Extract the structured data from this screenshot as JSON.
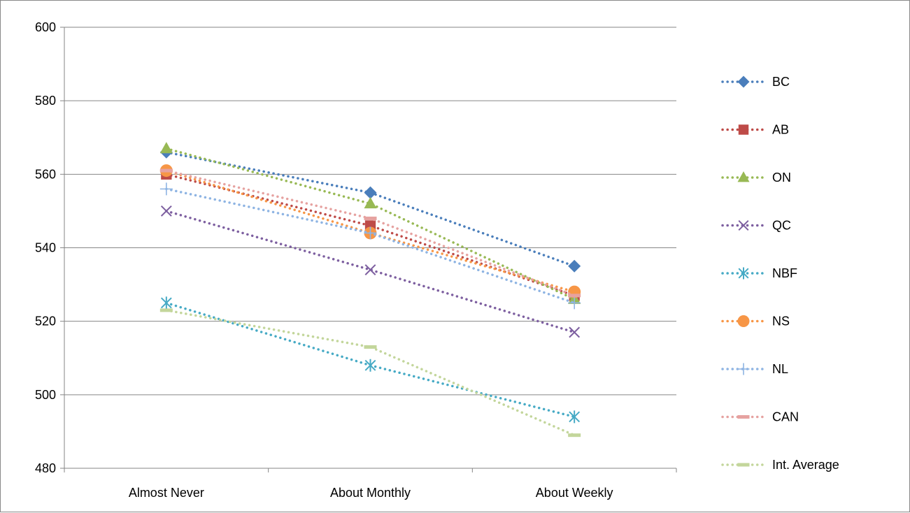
{
  "chart_data": {
    "type": "line",
    "categories": [
      "Almost Never",
      "About Monthly",
      "About Weekly"
    ],
    "ylim": [
      480,
      600
    ],
    "yticks": [
      480,
      500,
      520,
      540,
      560,
      580,
      600
    ],
    "grid": "horizontal",
    "legend_position": "right",
    "line_style": "dotted",
    "series": [
      {
        "name": "BC",
        "values": [
          566,
          555,
          535
        ],
        "color": "#4a7ebb",
        "marker": "diamond"
      },
      {
        "name": "AB",
        "values": [
          560,
          546,
          527
        ],
        "color": "#be4b48",
        "marker": "square"
      },
      {
        "name": "ON",
        "values": [
          567,
          552,
          526
        ],
        "color": "#98b954",
        "marker": "triangle"
      },
      {
        "name": "QC",
        "values": [
          550,
          534,
          517
        ],
        "color": "#7d5fa0",
        "marker": "x"
      },
      {
        "name": "NBF",
        "values": [
          525,
          508,
          494
        ],
        "color": "#46aac5",
        "marker": "star"
      },
      {
        "name": "NS",
        "values": [
          561,
          544,
          528
        ],
        "color": "#f79646",
        "marker": "circle"
      },
      {
        "name": "NL",
        "values": [
          556,
          544,
          525
        ],
        "color": "#8eb4e3",
        "marker": "plus"
      },
      {
        "name": "CAN",
        "values": [
          561,
          548,
          527
        ],
        "color": "#e6a2a0",
        "marker": "dash"
      },
      {
        "name": "Int. Average",
        "values": [
          523,
          513,
          489
        ],
        "color": "#c3d69b",
        "marker": "dash"
      }
    ]
  }
}
